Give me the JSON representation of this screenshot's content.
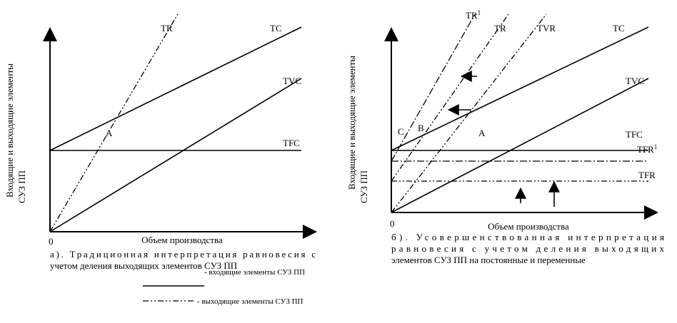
{
  "left": {
    "y_axis_label": [
      "Входящие и выходящие элементы",
      "СУЗ ПП"
    ],
    "origin": "0",
    "x_axis_label": "Объем производства",
    "lines": {
      "TR": "TR",
      "TC": "TC",
      "TVC": "TVC",
      "TFC": "TFC"
    },
    "point": "A",
    "caption": [
      "а). Традиционная интерпретация равновесия с",
      "учетом деления выходящих элементов СУЗ ПП"
    ]
  },
  "right": {
    "y_axis_label": [
      "Входящие и выходящие элементы",
      "СУЗ ПП"
    ],
    "origin": "0",
    "x_axis_label": "Объем производства",
    "lines": {
      "TR1": {
        "text": "TR",
        "sup": "1"
      },
      "TR": "TR",
      "TVR": "TVR",
      "TC": "TC",
      "TVC": "TVC",
      "TFC": "TFC",
      "TFR1": {
        "text": "TFR",
        "sup": "1"
      },
      "TFR": "TFR"
    },
    "points": [
      "C",
      "B",
      "A"
    ],
    "caption": [
      "б). Усовершенствованная интерпретация",
      "равновесия с учетом деления выходящих",
      "элементов СУЗ ПП на постоянные и переменные"
    ]
  },
  "legend": [
    "- входящие элементы СУЗ ПП",
    "- выходящие элементы СУЗ ПП"
  ]
}
